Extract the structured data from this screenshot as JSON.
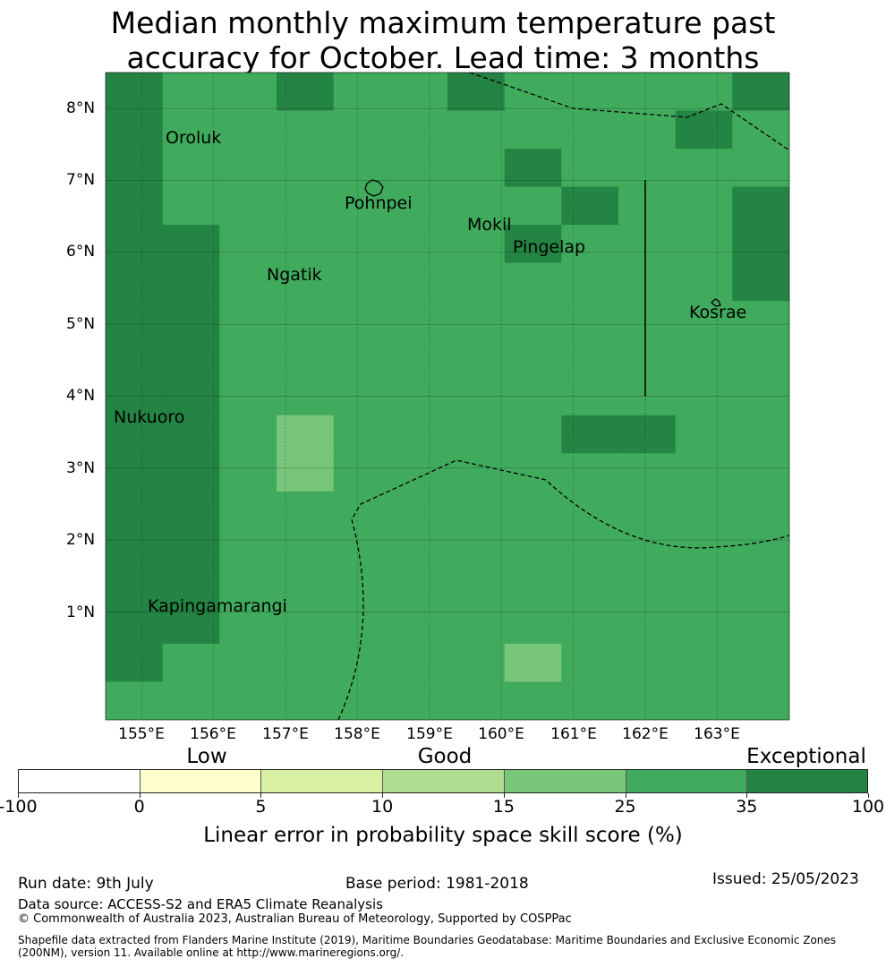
{
  "title_lines": [
    "Median monthly maximum temperature past",
    "accuracy for October. Lead time: 3 months"
  ],
  "map": {
    "lat_labels": [
      "8°N",
      "7°N",
      "6°N",
      "5°N",
      "4°N",
      "3°N",
      "2°N",
      "1°N"
    ],
    "lon_labels": [
      "155°E",
      "156°E",
      "157°E",
      "158°E",
      "159°E",
      "160°E",
      "161°E",
      "162°E",
      "163°E"
    ],
    "places": [
      "Oroluk",
      "Pohnpei",
      "Mokil",
      "Pingelap",
      "Ngatik",
      "Kosrae",
      "Nukuoro",
      "Kapingamarangi"
    ],
    "grid_colors": {
      "A": "#238443",
      "B": "#41ab5d",
      "C": "#78c679",
      "D": "#addd8e",
      "E": "#d9f0a3",
      "F": "#ffffcc"
    },
    "grid_rows": [
      "ABBABBABBBBA",
      "ABBBBBBBBBAB",
      "ABBBBBBABBBB",
      "ABBBBBBBABBA",
      "AABBBBBABBBA",
      "AABBBBBBBBBA",
      "AABBBBBBBBBB",
      "AABBBBBBBBBB",
      "AABBBBBBBBBB",
      "AABCBBBBAABB",
      "AABCBBBBBBBB",
      "AABBBBBBBBBB",
      "AABBBBBBBBBB",
      "AABBBBBBBBBB",
      "AABBBBBBBBBB",
      "ABBBBBBCBBBB",
      "BBBBBBBBBBBB"
    ]
  },
  "chart_data": {
    "type": "heatmap",
    "title": "Median monthly maximum temperature past accuracy for October. Lead time: 3 months",
    "xlabel": "Linear error in probability space skill score (%)",
    "category_labels": [
      "Low",
      "Good",
      "Exceptional"
    ],
    "colorbar_ticks": [
      "-100",
      "0",
      "5",
      "10",
      "15",
      "25",
      "35",
      "100"
    ],
    "colorbar_bins": [
      {
        "from": -100,
        "to": 0,
        "color": "#ffffff"
      },
      {
        "from": 0,
        "to": 5,
        "color": "#ffffcc"
      },
      {
        "from": 5,
        "to": 10,
        "color": "#d9f0a3"
      },
      {
        "from": 10,
        "to": 15,
        "color": "#addd8e"
      },
      {
        "from": 15,
        "to": 25,
        "color": "#78c679"
      },
      {
        "from": 25,
        "to": 35,
        "color": "#41ab5d"
      },
      {
        "from": 35,
        "to": 100,
        "color": "#238443"
      }
    ],
    "lon_range": [
      154.5,
      164.0
    ],
    "lat_range": [
      -0.5,
      8.5
    ]
  },
  "footer": {
    "run_date": "Run date: 9th July",
    "base_period": "Base period: 1981-2018",
    "issued": "Issued: 25/05/2023",
    "data_source": "Data source: ACCESS-S2 and ERA5 Climate Reanalysis",
    "copyright": "© Commonwealth of Australia 2023, Australian Bureau of Meteorology, Supported by COSPPac",
    "shapefile_line1": "Shapefile data extracted from Flanders Marine Institute (2019), Maritime Boundaries Geodatabase: Maritime Boundaries and Exclusive Economic Zones",
    "shapefile_line2": "(200NM), version 11. Available online at http://www.marineregions.org/."
  }
}
